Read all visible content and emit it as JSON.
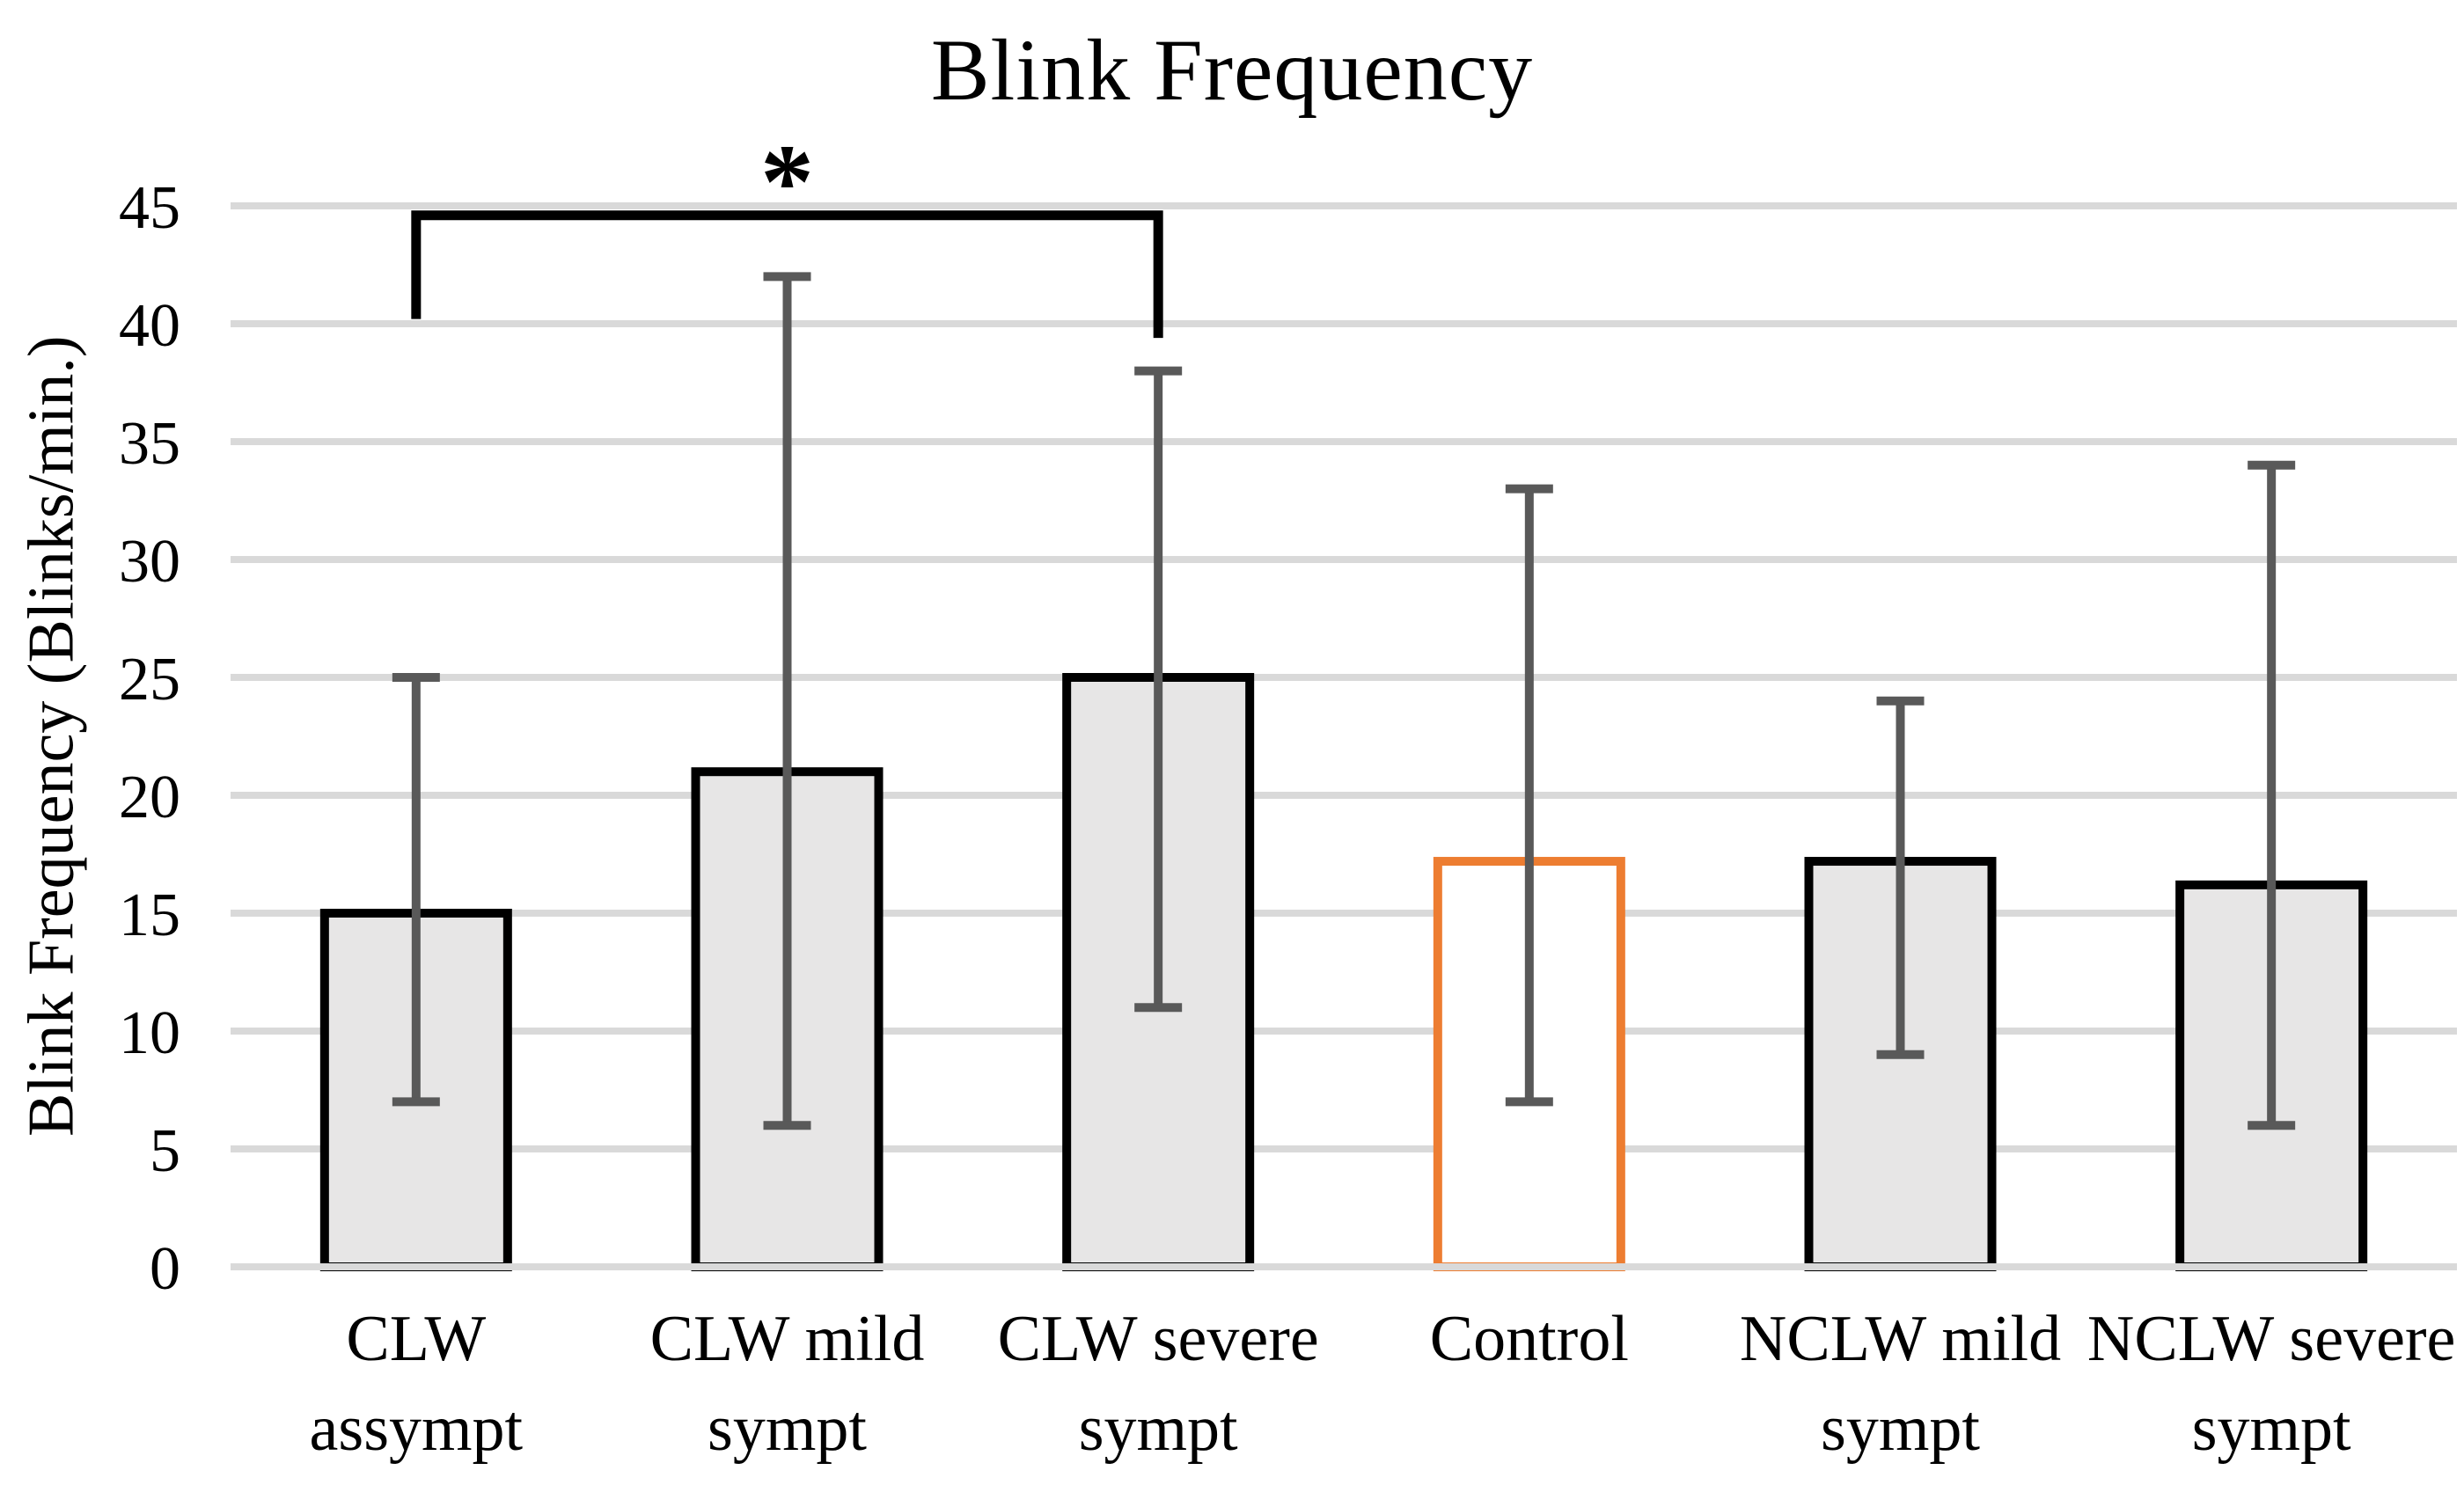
{
  "chart_data": {
    "type": "bar",
    "title": "Blink Frequency",
    "ylabel": "Blink Frequency (Blinks/min.)",
    "xlabel": "",
    "ylim": [
      0,
      45
    ],
    "yticks": [
      0,
      5,
      10,
      15,
      20,
      25,
      30,
      35,
      40,
      45
    ],
    "grid": true,
    "legend": "none",
    "categories": [
      {
        "label_lines": [
          "CLW",
          "assympt"
        ],
        "value": 15,
        "err_low": 7,
        "err_high": 25,
        "variant": "default"
      },
      {
        "label_lines": [
          "CLW mild",
          "sympt"
        ],
        "value": 21,
        "err_low": 6,
        "err_high": 42,
        "variant": "default"
      },
      {
        "label_lines": [
          "CLW severe",
          "sympt"
        ],
        "value": 25,
        "err_low": 11,
        "err_high": 38,
        "variant": "default"
      },
      {
        "label_lines": [
          "Control"
        ],
        "value": 17.2,
        "err_low": 7,
        "err_high": 33,
        "variant": "control"
      },
      {
        "label_lines": [
          "NCLW mild",
          "sympt"
        ],
        "value": 17.2,
        "err_low": 9,
        "err_high": 24,
        "variant": "default"
      },
      {
        "label_lines": [
          "NCLW severe",
          "sympt"
        ],
        "value": 16.2,
        "err_low": 6,
        "err_high": 34,
        "variant": "default"
      }
    ],
    "significance": {
      "from_category": 0,
      "to_category": 2,
      "label": "*",
      "top_value": 44.6,
      "left_drop_value": 40.2,
      "right_drop_value": 39.4
    },
    "colors": {
      "background": "#FFFFFF",
      "gridline": "#D9D9D9",
      "bar_fill": "#E7E6E6",
      "bar_border": "#000000",
      "control_fill": "#FFFFFF",
      "control_border": "#ED7D31",
      "error_bar": "#595959",
      "bracket": "#000000",
      "text": "#000000"
    }
  }
}
